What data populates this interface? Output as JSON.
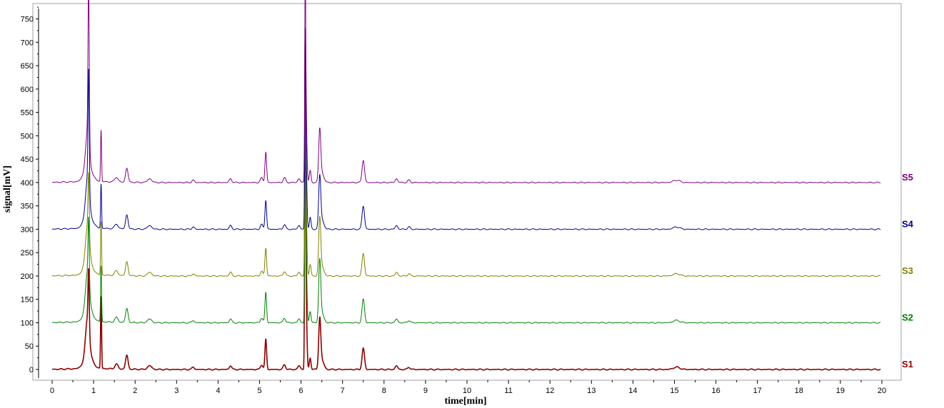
{
  "chart_data": {
    "type": "line",
    "xlabel": "time[min]",
    "ylabel": "signal[mV]",
    "xlim": [
      0,
      20
    ],
    "ylim": [
      -20,
      775
    ],
    "xticks": [
      0,
      1,
      2,
      3,
      4,
      5,
      6,
      7,
      8,
      9,
      10,
      11,
      12,
      13,
      14,
      15,
      16,
      17,
      18,
      19,
      20
    ],
    "yticks": [
      0,
      50,
      100,
      150,
      200,
      250,
      300,
      350,
      400,
      450,
      500,
      550,
      600,
      650,
      700,
      750
    ],
    "grid": false,
    "legend": "series labels at right end of each trace",
    "series": [
      {
        "name": "S1",
        "color": "#8b0000",
        "baseline": 0,
        "x_end": 19.97,
        "peaks": [
          [
            0.85,
            75,
            0.045
          ],
          [
            0.88,
            125,
            0.015
          ],
          [
            0.87,
            30,
            0.1
          ],
          [
            1.18,
            155,
            0.012
          ],
          [
            1.55,
            10,
            0.04
          ],
          [
            1.8,
            30,
            0.03
          ],
          [
            2.35,
            8,
            0.05
          ],
          [
            3.4,
            5,
            0.03
          ],
          [
            4.3,
            8,
            0.03
          ],
          [
            5.05,
            10,
            0.03
          ],
          [
            5.15,
            64,
            0.02
          ],
          [
            5.6,
            10,
            0.03
          ],
          [
            5.95,
            8,
            0.03
          ],
          [
            6.1,
            640,
            0.012
          ],
          [
            6.12,
            150,
            0.02
          ],
          [
            6.22,
            25,
            0.02
          ],
          [
            6.45,
            100,
            0.025
          ],
          [
            6.5,
            20,
            0.05
          ],
          [
            7.5,
            45,
            0.03
          ],
          [
            8.3,
            8,
            0.03
          ],
          [
            8.6,
            5,
            0.03
          ],
          [
            15.05,
            5,
            0.08
          ]
        ]
      },
      {
        "name": "S2",
        "color": "#008000",
        "baseline": 100,
        "x_end": 19.97,
        "peaks": [
          [
            0.85,
            75,
            0.045
          ],
          [
            0.88,
            135,
            0.015
          ],
          [
            0.87,
            30,
            0.1
          ],
          [
            1.18,
            120,
            0.012
          ],
          [
            1.55,
            10,
            0.04
          ],
          [
            1.8,
            30,
            0.03
          ],
          [
            2.35,
            8,
            0.05
          ],
          [
            3.4,
            5,
            0.03
          ],
          [
            4.3,
            8,
            0.03
          ],
          [
            5.05,
            10,
            0.03
          ],
          [
            5.15,
            65,
            0.02
          ],
          [
            5.6,
            10,
            0.03
          ],
          [
            5.95,
            8,
            0.03
          ],
          [
            6.1,
            400,
            0.012
          ],
          [
            6.12,
            150,
            0.02
          ],
          [
            6.22,
            25,
            0.02
          ],
          [
            6.45,
            125,
            0.025
          ],
          [
            6.5,
            20,
            0.05
          ],
          [
            7.5,
            50,
            0.03
          ],
          [
            8.3,
            8,
            0.03
          ],
          [
            8.6,
            5,
            0.03
          ],
          [
            15.05,
            5,
            0.08
          ]
        ]
      },
      {
        "name": "S3",
        "color": "#808000",
        "baseline": 200,
        "x_end": 19.97,
        "peaks": [
          [
            0.85,
            75,
            0.045
          ],
          [
            0.88,
            130,
            0.015
          ],
          [
            0.87,
            30,
            0.1
          ],
          [
            1.18,
            115,
            0.012
          ],
          [
            1.55,
            10,
            0.04
          ],
          [
            1.8,
            30,
            0.03
          ],
          [
            2.35,
            8,
            0.05
          ],
          [
            3.4,
            5,
            0.03
          ],
          [
            4.3,
            8,
            0.03
          ],
          [
            5.05,
            10,
            0.03
          ],
          [
            5.15,
            60,
            0.02
          ],
          [
            5.6,
            10,
            0.03
          ],
          [
            5.95,
            8,
            0.03
          ],
          [
            6.1,
            400,
            0.012
          ],
          [
            6.12,
            150,
            0.02
          ],
          [
            6.22,
            25,
            0.02
          ],
          [
            6.45,
            115,
            0.025
          ],
          [
            6.5,
            20,
            0.05
          ],
          [
            7.5,
            48,
            0.03
          ],
          [
            8.3,
            8,
            0.03
          ],
          [
            8.6,
            5,
            0.03
          ],
          [
            15.05,
            5,
            0.08
          ]
        ]
      },
      {
        "name": "S4",
        "color": "#00008b",
        "baseline": 300,
        "x_end": 19.97,
        "peaks": [
          [
            0.85,
            75,
            0.045
          ],
          [
            0.88,
            250,
            0.015
          ],
          [
            0.87,
            30,
            0.1
          ],
          [
            1.18,
            95,
            0.012
          ],
          [
            1.55,
            10,
            0.04
          ],
          [
            1.8,
            30,
            0.03
          ],
          [
            2.35,
            8,
            0.05
          ],
          [
            3.4,
            5,
            0.03
          ],
          [
            4.3,
            8,
            0.03
          ],
          [
            5.05,
            10,
            0.03
          ],
          [
            5.15,
            62,
            0.02
          ],
          [
            5.6,
            10,
            0.03
          ],
          [
            5.95,
            8,
            0.03
          ],
          [
            6.1,
            305,
            0.012
          ],
          [
            6.12,
            150,
            0.02
          ],
          [
            6.22,
            25,
            0.02
          ],
          [
            6.45,
            105,
            0.025
          ],
          [
            6.5,
            20,
            0.05
          ],
          [
            7.5,
            50,
            0.03
          ],
          [
            8.3,
            8,
            0.03
          ],
          [
            8.6,
            5,
            0.03
          ],
          [
            15.05,
            5,
            0.08
          ]
        ]
      },
      {
        "name": "S5",
        "color": "#800080",
        "baseline": 400,
        "x_end": 19.97,
        "peaks": [
          [
            0.85,
            75,
            0.045
          ],
          [
            0.88,
            335,
            0.015
          ],
          [
            0.87,
            30,
            0.1
          ],
          [
            1.18,
            110,
            0.012
          ],
          [
            1.55,
            10,
            0.04
          ],
          [
            1.8,
            30,
            0.03
          ],
          [
            2.35,
            8,
            0.05
          ],
          [
            3.4,
            5,
            0.03
          ],
          [
            4.3,
            8,
            0.03
          ],
          [
            5.05,
            10,
            0.03
          ],
          [
            5.15,
            65,
            0.02
          ],
          [
            5.6,
            10,
            0.03
          ],
          [
            5.95,
            8,
            0.03
          ],
          [
            6.1,
            360,
            0.012
          ],
          [
            6.12,
            150,
            0.02
          ],
          [
            6.22,
            25,
            0.02
          ],
          [
            6.45,
            105,
            0.025
          ],
          [
            6.5,
            20,
            0.05
          ],
          [
            7.5,
            48,
            0.03
          ],
          [
            8.3,
            8,
            0.03
          ],
          [
            8.6,
            5,
            0.03
          ],
          [
            15.05,
            5,
            0.08
          ]
        ]
      }
    ]
  }
}
